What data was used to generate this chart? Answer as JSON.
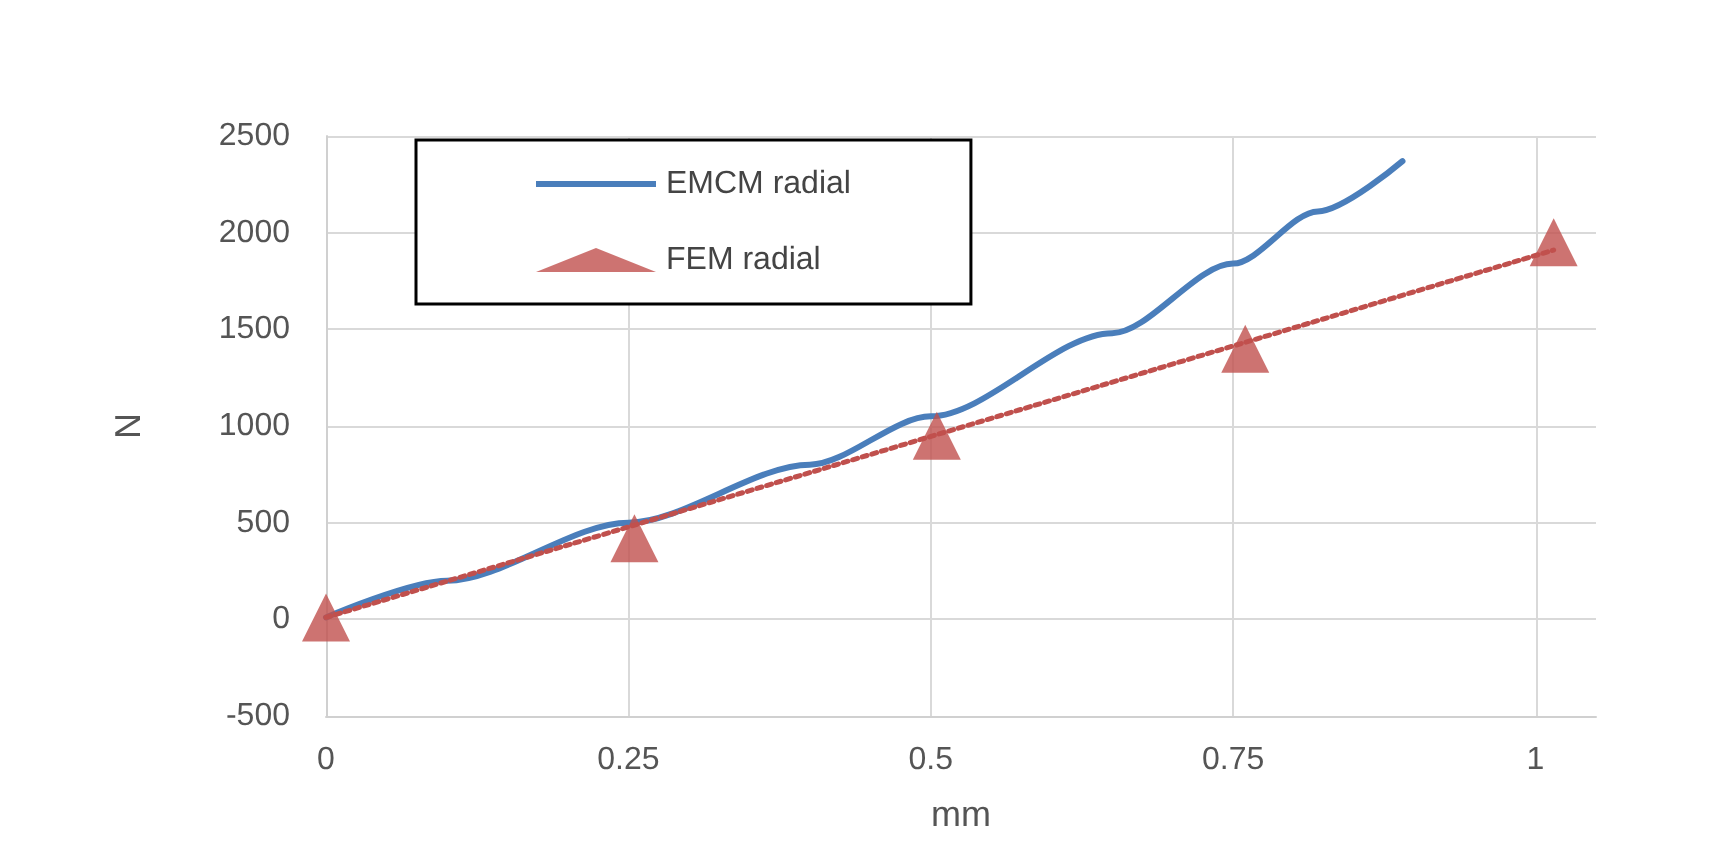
{
  "chart_data": {
    "type": "line",
    "xlabel": "mm",
    "ylabel": "N",
    "xlim": [
      0,
      1.05
    ],
    "xticks": [
      0,
      0.25,
      0.5,
      0.75,
      1
    ],
    "ylim": [
      -500,
      2500
    ],
    "yticks": [
      -500,
      0,
      500,
      1000,
      1500,
      2000,
      2500
    ],
    "grid": true,
    "legend": "top left",
    "series": [
      {
        "name": "EMCM radial",
        "type": "line",
        "color": "#4a7ebb",
        "marker": "none",
        "line_style": "solid",
        "x": [
          0,
          0.1,
          0.25,
          0.4,
          0.5,
          0.65,
          0.75,
          0.82,
          0.89
        ],
        "values": [
          10,
          200,
          500,
          800,
          1050,
          1480,
          1840,
          2110,
          2370
        ]
      },
      {
        "name": "FEM radial",
        "type": "scatter",
        "color": "#c0504d",
        "marker": "triangle",
        "x": [
          0,
          0.255,
          0.505,
          0.76,
          1.015
        ],
        "values": [
          10,
          420,
          950,
          1400,
          1950
        ]
      },
      {
        "type": "line",
        "color": "#c0504d",
        "marker": "none",
        "line_style": "dotted",
        "x": [
          0,
          1.015
        ],
        "values": [
          10,
          1910
        ]
      }
    ]
  }
}
